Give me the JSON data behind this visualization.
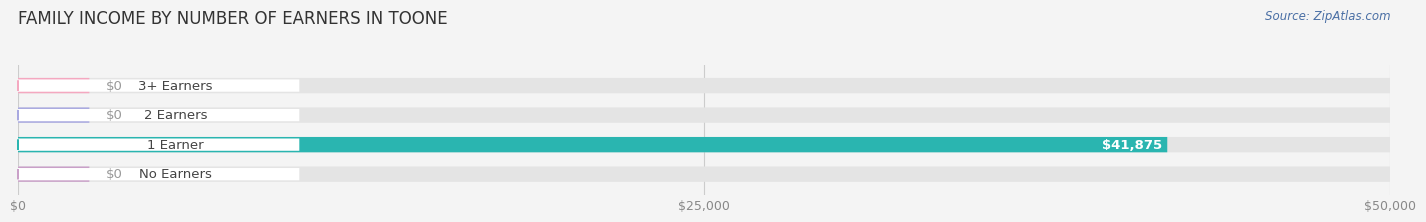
{
  "title": "FAMILY INCOME BY NUMBER OF EARNERS IN TOONE",
  "source_text": "Source: ZipAtlas.com",
  "categories": [
    "No Earners",
    "1 Earner",
    "2 Earners",
    "3+ Earners"
  ],
  "values": [
    0,
    41875,
    0,
    0
  ],
  "xlim": [
    0,
    50000
  ],
  "xticks": [
    0,
    25000,
    50000
  ],
  "xtick_labels": [
    "$0",
    "$25,000",
    "$50,000"
  ],
  "bar_colors": [
    "#c9a0c8",
    "#2ab5b0",
    "#a8a8e0",
    "#f4a8c0"
  ],
  "bar_label_colors": [
    "#999999",
    "#ffffff",
    "#999999",
    "#999999"
  ],
  "bar_label_values": [
    "$0",
    "$41,875",
    "$0",
    "$0"
  ],
  "background_color": "#f4f4f4",
  "bar_bg_color": "#e4e4e4",
  "title_fontsize": 12,
  "label_fontsize": 9.5,
  "tick_fontsize": 9,
  "source_fontsize": 8.5,
  "bar_height": 0.52,
  "circle_colors": [
    "#c9a0c8",
    "#2ab5b0",
    "#a8a8e0",
    "#f4a8c0"
  ]
}
